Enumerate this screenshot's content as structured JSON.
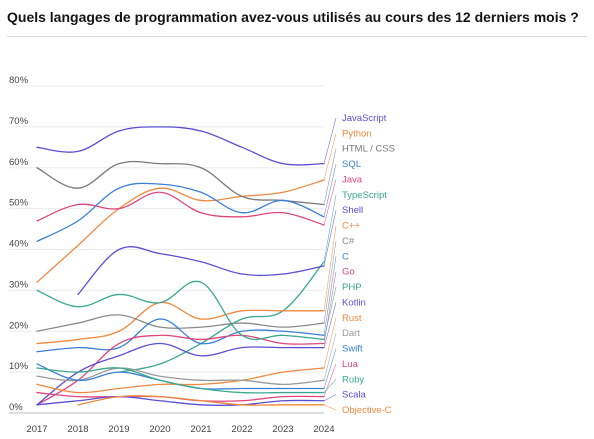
{
  "title": "Quels langages de programmation avez-vous utilisés au cours des 12 derniers mois ?",
  "chart_data": {
    "type": "line",
    "x": [
      2017,
      2018,
      2019,
      2020,
      2021,
      2022,
      2023,
      2024
    ],
    "ylim": [
      0,
      80
    ],
    "yticks": [
      "0%",
      "10%",
      "20%",
      "30%",
      "40%",
      "50%",
      "60%",
      "70%",
      "80%"
    ],
    "xticks": [
      "2017",
      "2018",
      "2019",
      "2020",
      "2021",
      "2022",
      "2023",
      "2024"
    ],
    "grid": true,
    "legend": "right",
    "series": [
      {
        "name": "JavaScript",
        "color": "#5a4fd6",
        "values": [
          65,
          64,
          69,
          70,
          69,
          65,
          61,
          61
        ]
      },
      {
        "name": "Python",
        "color": "#f0883e",
        "values": [
          32,
          41,
          50,
          55,
          52,
          53,
          54,
          57
        ]
      },
      {
        "name": "HTML / CSS",
        "color": "#7a7a7a",
        "values": [
          60,
          55,
          61,
          61,
          60,
          53,
          52,
          51
        ]
      },
      {
        "name": "SQL",
        "color": "#3a7fd9",
        "values": [
          42,
          47,
          55,
          56,
          54,
          49,
          52,
          48
        ]
      },
      {
        "name": "Java",
        "color": "#e0457b",
        "values": [
          47,
          51,
          50,
          54,
          49,
          48,
          49,
          46
        ]
      },
      {
        "name": "TypeScript",
        "color": "#3aa88f",
        "values": [
          null,
          null,
          10,
          12,
          17,
          23,
          25,
          37
        ]
      },
      {
        "name": "Shell",
        "color": "#5a4fd6",
        "values": [
          null,
          29,
          40,
          39,
          37,
          34,
          34,
          36
        ]
      },
      {
        "name": "C++",
        "color": "#f0883e",
        "values": [
          17,
          18,
          20,
          27,
          23,
          25,
          25,
          25
        ]
      },
      {
        "name": "C#",
        "color": "#8a8a8a",
        "values": [
          20,
          22,
          24,
          21,
          21,
          22,
          21,
          22
        ]
      },
      {
        "name": "C",
        "color": "#3a7fd9",
        "values": [
          15,
          16,
          16,
          23,
          17,
          20,
          20,
          19
        ]
      },
      {
        "name": "Go",
        "color": "#e0457b",
        "values": [
          2,
          8,
          17,
          19,
          18,
          19,
          17,
          17
        ]
      },
      {
        "name": "PHP",
        "color": "#3aa88f",
        "values": [
          30,
          26,
          29,
          27,
          32,
          19,
          19,
          18
        ]
      },
      {
        "name": "Kotlin",
        "color": "#5a4fd6",
        "values": [
          2,
          10,
          14,
          17,
          14,
          16,
          16,
          16
        ]
      },
      {
        "name": "Rust",
        "color": "#f0883e",
        "values": [
          7,
          5,
          6,
          7,
          7,
          8,
          10,
          11
        ]
      },
      {
        "name": "Dart",
        "color": "#9a9a9a",
        "values": [
          9,
          8,
          11,
          9,
          8,
          8,
          7,
          8
        ]
      },
      {
        "name": "Swift",
        "color": "#3a7fd9",
        "values": [
          12,
          8,
          10,
          8,
          6,
          6,
          6,
          6
        ]
      },
      {
        "name": "Lua",
        "color": "#e0457b",
        "values": [
          5,
          4,
          4,
          4,
          3,
          3,
          4,
          4
        ]
      },
      {
        "name": "Ruby",
        "color": "#3aa88f",
        "values": [
          11,
          10,
          11,
          8,
          6,
          5,
          5,
          5
        ]
      },
      {
        "name": "Scala",
        "color": "#5a4fd6",
        "values": [
          2,
          3,
          4,
          3,
          2,
          2,
          3,
          3
        ]
      },
      {
        "name": "Objective-C",
        "color": "#f0883e",
        "values": [
          null,
          2,
          4,
          4,
          3,
          2,
          2,
          2
        ]
      }
    ]
  }
}
